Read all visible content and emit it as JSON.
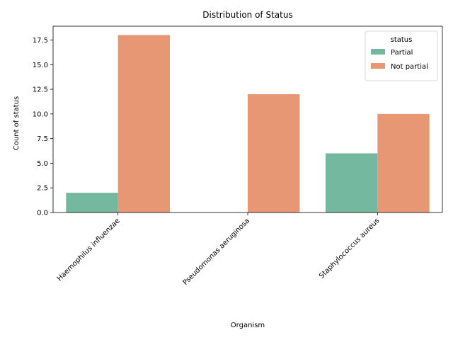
{
  "chart_data": {
    "type": "bar",
    "title": "Distribution of Status",
    "xlabel": "Organism",
    "ylabel": "Count of status",
    "categories": [
      "Haemophilus influenzae",
      "Pseudomonas aeruginosa",
      "Staphylococcus aureus"
    ],
    "series": [
      {
        "name": "Partial",
        "values": [
          2,
          0,
          6
        ],
        "color": "#73b89f"
      },
      {
        "name": "Not partial",
        "values": [
          18,
          12,
          10
        ],
        "color": "#e89774"
      }
    ],
    "ylim": [
      0,
      18.9
    ],
    "yticks": [
      "0.0",
      "2.5",
      "5.0",
      "7.5",
      "10.0",
      "12.5",
      "15.0",
      "17.5"
    ],
    "grid": false,
    "legend": {
      "title": "status",
      "placement": "top-right"
    }
  }
}
